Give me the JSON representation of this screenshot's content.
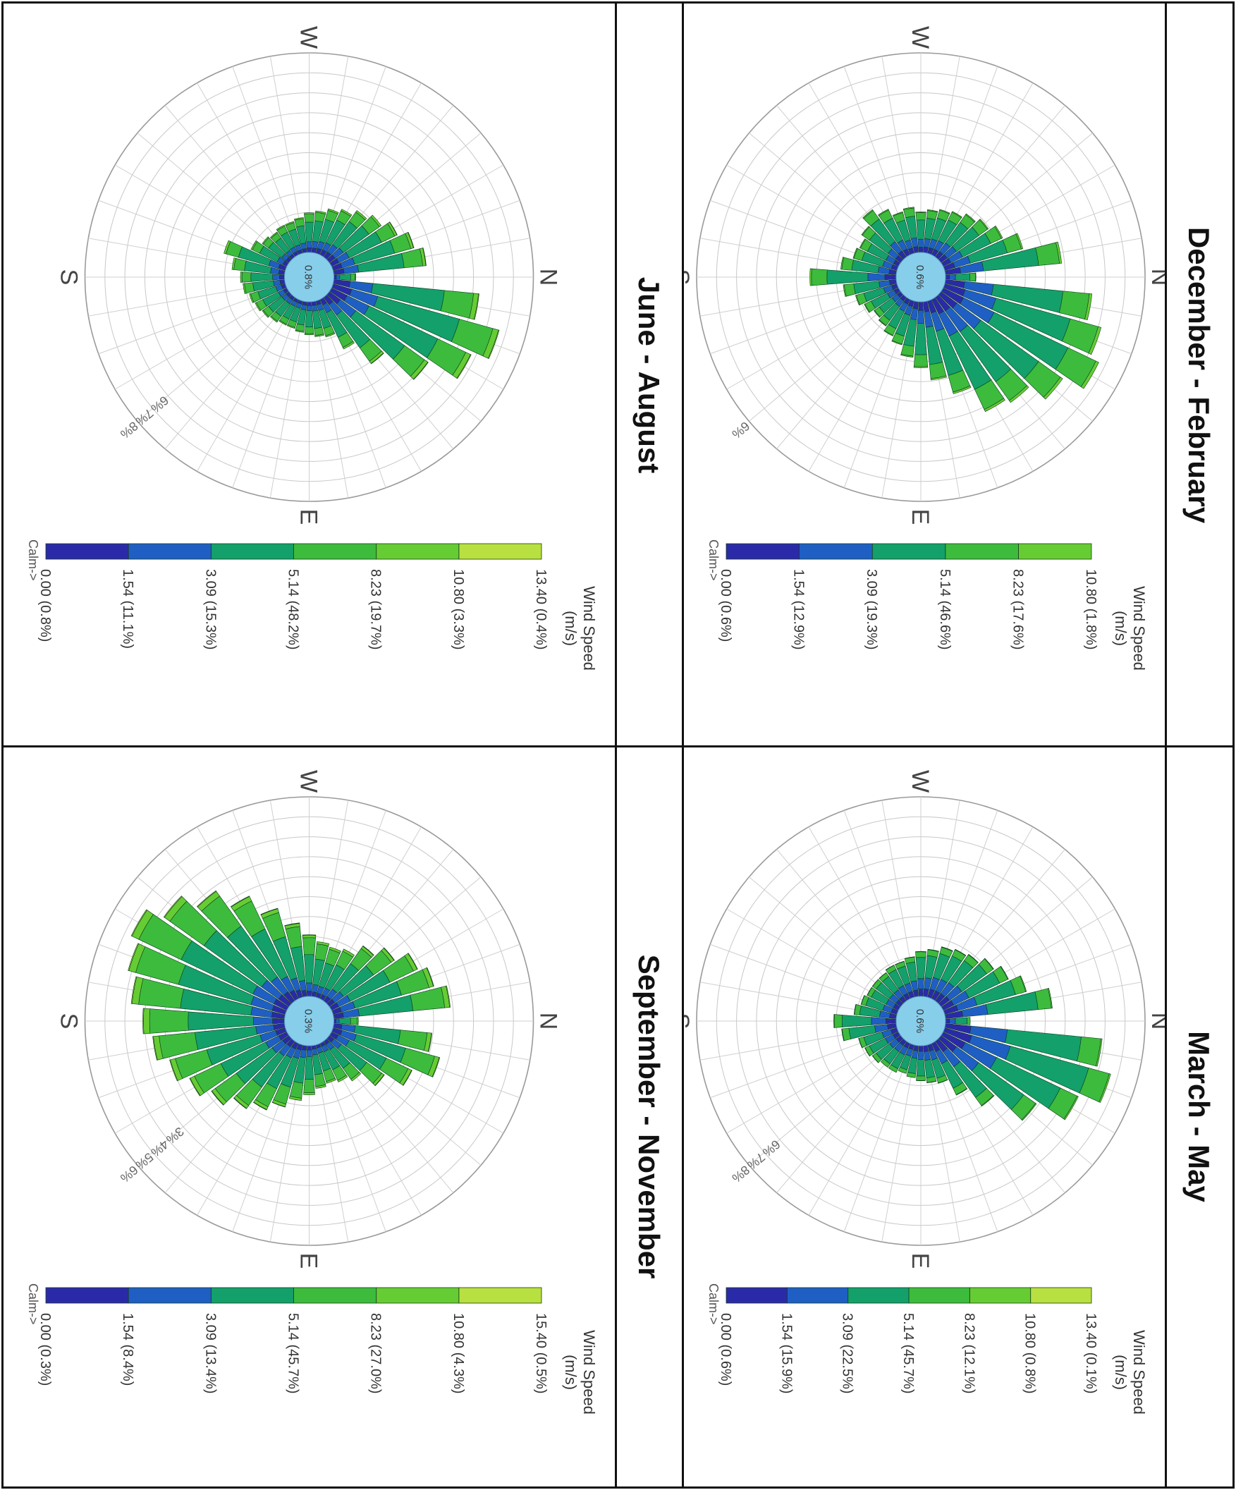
{
  "panels": [
    {
      "title": "December - February",
      "calm_label": "0.6%",
      "legend": {
        "title_lines": [
          "Wind Speed",
          "(m/s)"
        ],
        "calm_text": "Calm->",
        "colors": [
          "#2a2aa8",
          "#1f5fc4",
          "#13a06a",
          "#3dbb3d",
          "#66cc33",
          "#b8e040"
        ],
        "entries": [
          "10.80 (1.8%)",
          "8.23 (17.6%)",
          "5.14 (46.6%)",
          "3.09 (19.3%)",
          "1.54 (12.9%)",
          "0.00 (0.6%)"
        ]
      },
      "ring_labels": [
        "6%"
      ]
    },
    {
      "title": "March - May",
      "calm_label": "0.6%",
      "legend": {
        "title_lines": [
          "Wind Speed",
          "(m/s)"
        ],
        "calm_text": "Calm->",
        "colors": [
          "#2a2aa8",
          "#1f5fc4",
          "#13a06a",
          "#3dbb3d",
          "#66cc33",
          "#b8e040"
        ],
        "entries": [
          "13.40 (0.1%)",
          "10.80 (0.8%)",
          "8.23 (12.1%)",
          "5.14 (45.7%)",
          "3.09 (22.5%)",
          "1.54 (15.9%)",
          "0.00 (0.6%)"
        ]
      },
      "ring_labels": [
        "6%",
        "7%",
        "8%"
      ]
    },
    {
      "title": "June - August",
      "calm_label": "0.8%",
      "legend": {
        "title_lines": [
          "Wind Speed",
          "(m/s)"
        ],
        "calm_text": "Calm->",
        "colors": [
          "#2a2aa8",
          "#1f5fc4",
          "#13a06a",
          "#3dbb3d",
          "#66cc33",
          "#b8e040"
        ],
        "entries": [
          "13.40 (0.4%)",
          "10.80 (3.3%)",
          "8.23 (19.7%)",
          "5.14 (48.2%)",
          "3.09 (15.3%)",
          "1.54 (11.1%)",
          "0.00 (0.8%)"
        ]
      },
      "ring_labels": [
        "6%",
        "7%",
        "8%"
      ]
    },
    {
      "title": "September - November",
      "calm_label": "0.3%",
      "legend": {
        "title_lines": [
          "Wind Speed",
          "(m/s)"
        ],
        "calm_text": "Calm->",
        "colors": [
          "#2a2aa8",
          "#1f5fc4",
          "#13a06a",
          "#3dbb3d",
          "#66cc33",
          "#b8e040"
        ],
        "entries": [
          "15.40 (0.5%)",
          "10.80 (4.3%)",
          "8.23 (27.0%)",
          "5.14 (45.7%)",
          "3.09 (13.4%)",
          "1.54 (8.4%)",
          "0.00 (0.3%)"
        ]
      },
      "ring_labels": [
        "3%",
        "4%",
        "5%",
        "6%"
      ]
    }
  ],
  "compass": {
    "n": "N",
    "e": "E",
    "s": "S",
    "w": "W"
  },
  "chart_data": [
    {
      "type": "windrose",
      "title": "December - February",
      "directions_deg": [
        0,
        10,
        20,
        30,
        40,
        50,
        60,
        70,
        80,
        90,
        100,
        110,
        120,
        130,
        140,
        150,
        160,
        170,
        180,
        190,
        200,
        210,
        220,
        230,
        240,
        250,
        260,
        270,
        280,
        290,
        300,
        310,
        320,
        330,
        340,
        350
      ],
      "speed_bins_ms": [
        "0.00",
        "1.54",
        "3.09",
        "5.14",
        "8.23",
        "10.80"
      ],
      "bin_frequency_pct": [
        0.6,
        12.9,
        19.3,
        46.6,
        17.6,
        1.8
      ],
      "calm_pct": 0.6,
      "direction_totals_pct": [
        1.2,
        5.8,
        6.4,
        6.8,
        5.9,
        5.1,
        4.9,
        3.8,
        3.1,
        2.6,
        2.2,
        1.8,
        1.6,
        1.4,
        1.3,
        1.5,
        1.7,
        2.1,
        3.4,
        2.2,
        1.8,
        1.7,
        1.9,
        2.3,
        2.0,
        1.7,
        1.8,
        1.6,
        1.7,
        1.8,
        1.9,
        2.1,
        2.3,
        2.6,
        3.2,
        4.6
      ]
    },
    {
      "type": "windrose",
      "title": "March - May",
      "directions_deg": [
        0,
        10,
        20,
        30,
        40,
        50,
        60,
        70,
        80,
        90,
        100,
        110,
        120,
        130,
        140,
        150,
        160,
        170,
        180,
        190,
        200,
        210,
        220,
        230,
        240,
        250,
        260,
        270,
        280,
        290,
        300,
        310,
        320,
        330,
        340,
        350
      ],
      "speed_bins_ms": [
        "0.00",
        "1.54",
        "3.09",
        "5.14",
        "8.23",
        "10.80",
        "13.40"
      ],
      "bin_frequency_pct": [
        0.6,
        15.9,
        22.5,
        45.7,
        12.1,
        0.8,
        0.1
      ],
      "calm_pct": 0.6,
      "direction_totals_pct": [
        1.0,
        6.3,
        6.9,
        6.0,
        4.7,
        3.2,
        2.3,
        1.6,
        1.5,
        1.4,
        1.3,
        1.2,
        1.3,
        1.3,
        1.4,
        1.5,
        1.6,
        2.2,
        2.5,
        1.7,
        1.5,
        1.4,
        1.4,
        1.4,
        1.5,
        1.5,
        1.6,
        1.8,
        1.9,
        2.1,
        2.2,
        2.3,
        2.6,
        2.9,
        3.4,
        4.3
      ]
    },
    {
      "type": "windrose",
      "title": "June - August",
      "directions_deg": [
        0,
        10,
        20,
        30,
        40,
        50,
        60,
        70,
        80,
        90,
        100,
        110,
        120,
        130,
        140,
        150,
        160,
        170,
        180,
        190,
        200,
        210,
        220,
        230,
        240,
        250,
        260,
        270,
        280,
        290,
        300,
        310,
        320,
        330,
        340,
        350
      ],
      "speed_bins_ms": [
        "0.00",
        "1.54",
        "3.09",
        "5.14",
        "8.23",
        "10.80",
        "13.40"
      ],
      "bin_frequency_pct": [
        0.8,
        11.1,
        15.3,
        48.2,
        19.7,
        3.3,
        0.4
      ],
      "calm_pct": 0.8,
      "direction_totals_pct": [
        1.0,
        6.6,
        7.8,
        7.0,
        5.5,
        3.7,
        2.5,
        1.7,
        1.6,
        1.5,
        1.4,
        1.3,
        1.3,
        1.4,
        1.5,
        1.6,
        1.7,
        1.9,
        2.0,
        2.4,
        2.9,
        1.8,
        1.5,
        1.4,
        1.5,
        1.5,
        1.6,
        1.8,
        1.9,
        2.1,
        2.3,
        2.6,
        2.9,
        3.3,
        3.8,
        4.2
      ]
    },
    {
      "type": "windrose",
      "title": "September - November",
      "directions_deg": [
        0,
        10,
        20,
        30,
        40,
        50,
        60,
        70,
        80,
        90,
        100,
        110,
        120,
        130,
        140,
        150,
        160,
        170,
        180,
        190,
        200,
        210,
        220,
        230,
        240,
        250,
        260,
        270,
        280,
        290,
        300,
        310,
        320,
        330,
        340,
        350
      ],
      "speed_bins_ms": [
        "0.00",
        "1.54",
        "3.09",
        "5.14",
        "8.23",
        "10.80",
        "15.40"
      ],
      "bin_frequency_pct": [
        0.3,
        8.4,
        13.4,
        45.7,
        27.0,
        4.3,
        0.5
      ],
      "calm_pct": 0.3,
      "direction_totals_pct": [
        0.8,
        3.2,
        3.6,
        2.9,
        2.2,
        1.6,
        1.4,
        1.3,
        1.4,
        1.6,
        1.8,
        2.1,
        2.4,
        2.7,
        3.1,
        3.5,
        3.9,
        4.3,
        4.6,
        5.0,
        5.3,
        5.6,
        5.0,
        4.4,
        3.7,
        3.0,
        2.4,
        2.0,
        1.8,
        1.7,
        1.8,
        2.2,
        2.6,
        3.1,
        3.4,
        3.8
      ]
    }
  ]
}
